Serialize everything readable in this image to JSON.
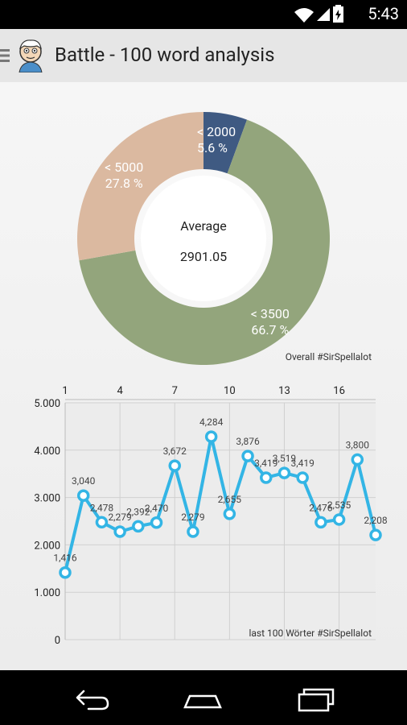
{
  "status_bar": {
    "time": "5:43"
  },
  "action_bar": {
    "title": "Battle - 100 word analysis"
  },
  "donut": {
    "center_label": "Average",
    "center_value": "2901.05",
    "caption": "Overall #SirSpellalot",
    "segments": [
      {
        "label": "< 2000",
        "percent_label": "5.6 %",
        "value": 5.6,
        "color": "#3f5a82"
      },
      {
        "label": "< 3500",
        "percent_label": "66.7 %",
        "value": 66.7,
        "color": "#93a57c"
      },
      {
        "label": "< 5000",
        "percent_label": "27.8 %",
        "value": 27.8,
        "color": "#dbb9a0"
      }
    ]
  },
  "chart_data": {
    "type": "line",
    "caption": "last 100 Wörter #SirSpellalot",
    "x": [
      1,
      2,
      3,
      4,
      5,
      6,
      7,
      8,
      9,
      10,
      11,
      12,
      13,
      14,
      15,
      16,
      17,
      18
    ],
    "values": [
      1416,
      3040,
      2478,
      2279,
      2392,
      2470,
      3672,
      2279,
      4284,
      2655,
      3876,
      3419,
      3519,
      3419,
      2476,
      2535,
      3800,
      2208
    ],
    "value_labels": [
      "1,416",
      "3,040",
      "2,478",
      "2,279",
      "2,392",
      "2,470",
      "3,672",
      "2,279",
      "4,284",
      "2,655",
      "3,876",
      "3,419",
      "3,519",
      "3,419",
      "2,476",
      "2,535",
      "3,800",
      "2,208"
    ],
    "x_ticks": [
      "1",
      "4",
      "7",
      "10",
      "13",
      "16"
    ],
    "y_ticks": [
      "0",
      "1.000",
      "2.000",
      "3.000",
      "4.000",
      "5.000"
    ],
    "ylim": [
      0,
      5000
    ],
    "grid": true,
    "line_color": "#33b5e5"
  }
}
